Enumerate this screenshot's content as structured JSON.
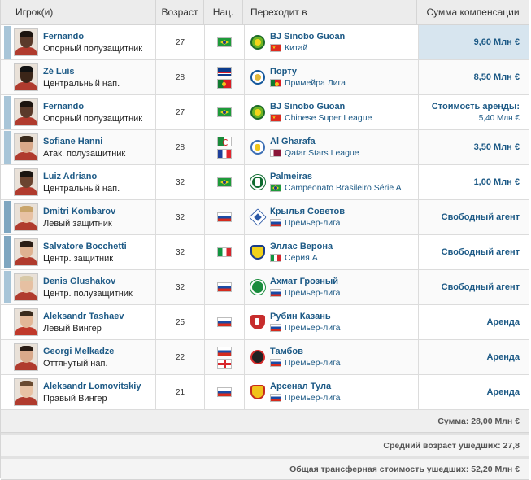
{
  "header": {
    "player": "Игрок(и)",
    "age": "Возраст",
    "nat": "Нац.",
    "to": "Переходит в",
    "fee": "Сумма компенсации"
  },
  "rows": [
    {
      "name": "Fernando",
      "position": "Опорный полузащитник",
      "age": "27",
      "flags": [
        "brazil-flag"
      ],
      "club": "BJ Sinobo Guoan",
      "league_flag": "china-flag",
      "league": "Китай",
      "fee": "9,60 Млн €",
      "fee_sub": "",
      "mark": "light",
      "highlight": true,
      "club_logo": "guoan-logo"
    },
    {
      "name": "Zé Luís",
      "position": "Центральный нап.",
      "age": "28",
      "flags": [
        "cape-verde-flag",
        "portugal-flag"
      ],
      "club": "Порту",
      "league_flag": "portugal-flag",
      "league": "Примейра Лига",
      "fee": "8,50 Млн €",
      "fee_sub": "",
      "mark": "",
      "highlight": false,
      "club_logo": "porto-logo"
    },
    {
      "name": "Fernando",
      "position": "Опорный полузащитник",
      "age": "27",
      "flags": [
        "brazil-flag"
      ],
      "club": "BJ Sinobo Guoan",
      "league_flag": "china-flag",
      "league": "Chinese Super League",
      "fee": "Стоимость аренды:",
      "fee_sub": "5,40 Млн €",
      "mark": "light",
      "highlight": false,
      "club_logo": "guoan-logo"
    },
    {
      "name": "Sofiane Hanni",
      "position": "Атак. полузащитник",
      "age": "28",
      "flags": [
        "algeria-flag",
        "france-flag"
      ],
      "club": "Al Gharafa",
      "league_flag": "qatar-flag",
      "league": "Qatar Stars League",
      "fee": "3,50 Млн €",
      "fee_sub": "",
      "mark": "light",
      "highlight": false,
      "club_logo": "gharafa-logo"
    },
    {
      "name": "Luiz Adriano",
      "position": "Центральный нап.",
      "age": "32",
      "flags": [
        "brazil-flag"
      ],
      "club": "Palmeiras",
      "league_flag": "brazil-flag",
      "league": "Campeonato Brasileiro Série A",
      "fee": "1,00 Млн €",
      "fee_sub": "",
      "mark": "",
      "highlight": false,
      "club_logo": "palmeiras-logo"
    },
    {
      "name": "Dmitri Kombarov",
      "position": "Левый защитник",
      "age": "32",
      "flags": [
        "russia-flag"
      ],
      "club": "Крылья Советов",
      "league_flag": "russia-flag",
      "league": "Премьер-лига",
      "fee": "Свободный агент",
      "fee_sub": "",
      "mark": "dark",
      "highlight": false,
      "club_logo": "krylya-logo"
    },
    {
      "name": "Salvatore Bocchetti",
      "position": "Центр. защитник",
      "age": "32",
      "flags": [
        "italy-flag"
      ],
      "club": "Эллас Верона",
      "league_flag": "italy-flag",
      "league": "Серия А",
      "fee": "Свободный агент",
      "fee_sub": "",
      "mark": "dark",
      "highlight": false,
      "club_logo": "verona-logo"
    },
    {
      "name": "Denis Glushakov",
      "position": "Центр. полузащитник",
      "age": "32",
      "flags": [
        "russia-flag"
      ],
      "club": "Ахмат Грозный",
      "league_flag": "russia-flag",
      "league": "Премьер-лига",
      "fee": "Свободный агент",
      "fee_sub": "",
      "mark": "light",
      "highlight": false,
      "club_logo": "akhmat-logo"
    },
    {
      "name": "Aleksandr Tashaev",
      "position": "Левый Вингер",
      "age": "25",
      "flags": [
        "russia-flag"
      ],
      "club": "Рубин Казань",
      "league_flag": "russia-flag",
      "league": "Премьер-лига",
      "fee": "Аренда",
      "fee_sub": "",
      "mark": "",
      "highlight": false,
      "club_logo": "rubin-logo"
    },
    {
      "name": "Georgi Melkadze",
      "position": "Оттянутый нап.",
      "age": "22",
      "flags": [
        "russia-flag",
        "georgia-flag"
      ],
      "club": "Тамбов",
      "league_flag": "russia-flag",
      "league": "Премьер-лига",
      "fee": "Аренда",
      "fee_sub": "",
      "mark": "",
      "highlight": false,
      "club_logo": "tambov-logo"
    },
    {
      "name": "Aleksandr Lomovitskiy",
      "position": "Правый Вингер",
      "age": "21",
      "flags": [
        "russia-flag"
      ],
      "club": "Арсенал Тула",
      "league_flag": "russia-flag",
      "league": "Премьер-лига",
      "fee": "Аренда",
      "fee_sub": "",
      "mark": "",
      "highlight": false,
      "club_logo": "arsenal-tula-logo"
    }
  ],
  "footer": {
    "sum": "Сумма: 28,00 Млн €",
    "avg_age": "Средний возраст ушедших: 27,8",
    "total": "Общая трансферная стоимость ушедших: 52,20 Млн €"
  },
  "colors": {
    "link": "#1d5a86",
    "highlight": "#d7e5ef",
    "header_bg": "#ececec"
  }
}
